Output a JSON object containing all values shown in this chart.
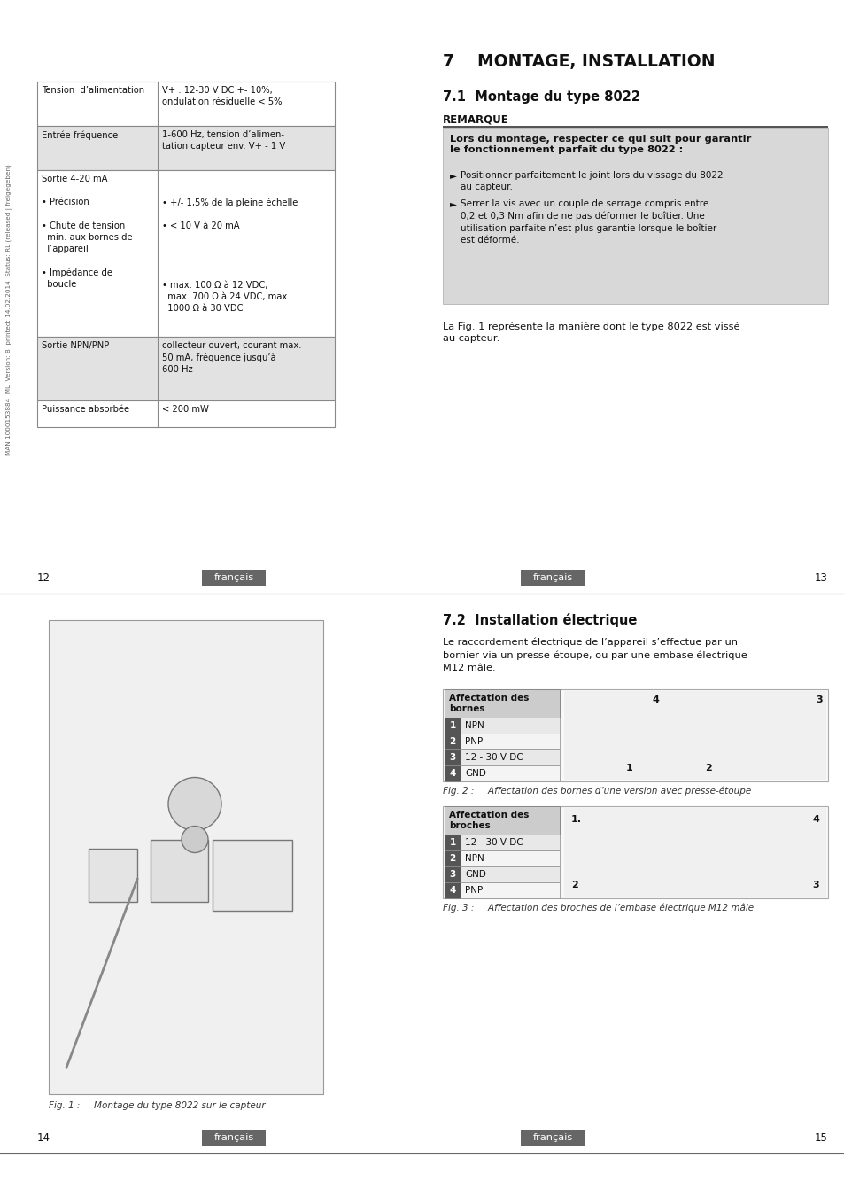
{
  "bg_color": "#ffffff",
  "left_page_number": "12",
  "right_page_number": "13",
  "left_page_number2": "14",
  "right_page_number2": "15",
  "footer_label": "français",
  "table_rows": [
    {
      "col1": "Tension  d’alimentation",
      "col2": "V+ : 12-30 V DC +- 10%,\nondulation résiduelle < 5%",
      "bg": "#ffffff"
    },
    {
      "col1": "Entrée fréquence",
      "col2": "1-600 Hz, tension d’alimen-\ntation capteur env. V+ - 1 V",
      "bg": "#e2e2e2"
    },
    {
      "col1": "Sortie 4-20 mA\n\n• Précision\n\n• Chute de tension\n  min. aux bornes de\n  l’appareil\n\n• Impédance de\n  boucle",
      "col2": "\n\n• +/- 1,5% de la pleine échelle\n\n• < 10 V à 20 mA\n\n\n\n\n• max. 100 Ω à 12 VDC,\n  max. 700 Ω à 24 VDC, max.\n  1000 Ω à 30 VDC",
      "bg": "#ffffff"
    },
    {
      "col1": "Sortie NPN/PNP",
      "col2": "collecteur ouvert, courant max.\n50 mA, fréquence jusqu’à\n600 Hz",
      "bg": "#e2e2e2"
    },
    {
      "col1": "Puissance absorbée",
      "col2": "< 200 mW",
      "bg": "#ffffff"
    }
  ],
  "section7_title": "7    MONTAGE, INSTALLATION",
  "section71_title": "7.1  Montage du type 8022",
  "remarque_label": "REMARQUE",
  "remarque_box_title_bold": "Lors du montage, respecter ce qui suit pour garantir\nle fonctionnement parfait du type 8022 :",
  "remarque_bullets": [
    "Positionner parfaitement le joint lors du vissage du 8022\nau capteur.",
    "Serrer la vis avec un couple de serrage compris entre\n0,2 et 0,3 Nm afin de ne pas déformer le boîtier. Une\nutilisation parfaite n’est plus garantie lorsque le boîtier\nest déformé."
  ],
  "remarque_bullet1_sym": "►",
  "remarque_bullet2_sym": "►",
  "fig1_caption_label": "Fig. 1 :",
  "fig1_caption_text": "    Montage du type 8022 sur le capteur",
  "fig1_caption_italic": "    Montage du type 8022 sur le capteur",
  "la_fig1_text": "La Fig. 1 représente la manière dont le type 8022 est vissé\nau capteur.",
  "section72_title": "7.2  Installation électrique",
  "section72_text": "Le raccordement électrique de l’appareil s’effectue par un\nbornier via un presse-étoupe, ou par une embase électrique\nM12 mâle.",
  "table2_header": "Affectation des\nbornes",
  "table2_rows": [
    [
      "1",
      "NPN"
    ],
    [
      "2",
      "PNP"
    ],
    [
      "3",
      "12 - 30 V DC"
    ],
    [
      "4",
      "GND"
    ]
  ],
  "fig2_caption_label": "Fig. 2 :",
  "fig2_caption_text": "    Affectation des bornes d’une version avec presse-étoupe",
  "table3_header": "Affectation des\nbroches",
  "table3_rows": [
    [
      "1",
      "12 - 30 V DC"
    ],
    [
      "2",
      "NPN"
    ],
    [
      "3",
      "GND"
    ],
    [
      "4",
      "PNP"
    ]
  ],
  "fig3_caption_label": "Fig. 3 :",
  "fig3_caption_text": "    Affectation des broches de l’embase électrique M12 mâle",
  "sidebar_text": "MAN 1000153884  ML  Version: B  printed: 14.02.2014  Status: RL (released | freigegeben)"
}
